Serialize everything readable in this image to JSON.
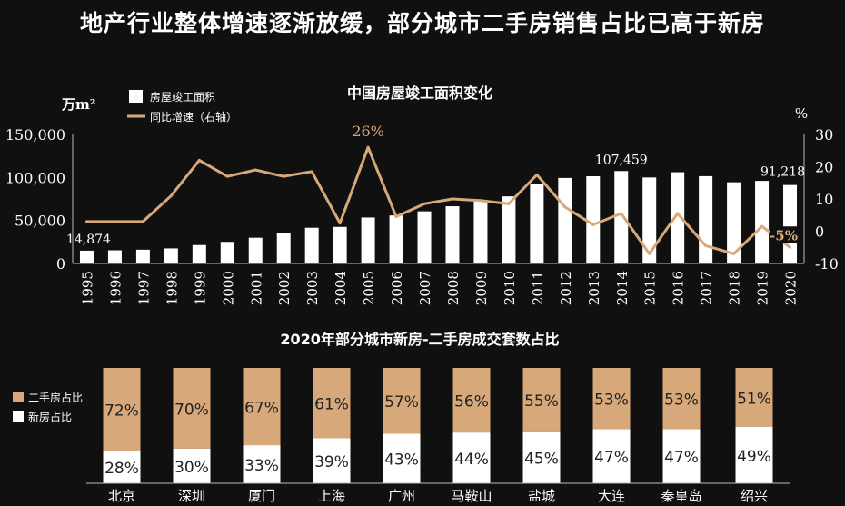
{
  "page_title": "地产行业整体增速逐渐放缓，部分城市二手房销售占比已高于新房",
  "colors": {
    "background": "#101010",
    "bar": "#ffffff",
    "line": "#d7a97a",
    "secondhand": "#d7a97a",
    "new": "#ffffff"
  },
  "chart_data": [
    {
      "type": "bar",
      "title": "中国房屋竣工面积变化",
      "ylabel": "万m²",
      "y2label": "%",
      "ylim": [
        0,
        150000
      ],
      "y2lim": [
        -10,
        30
      ],
      "yticks": [
        "150,000",
        "100,000",
        "50,000",
        "0"
      ],
      "y2ticks": [
        "30",
        "20",
        "10",
        "0",
        "-10"
      ],
      "legend": [
        "房屋竣工面积",
        "同比增速（右轴）"
      ],
      "categories": [
        "1995",
        "1996",
        "1997",
        "1998",
        "1999",
        "2000",
        "2001",
        "2002",
        "2003",
        "2004",
        "2005",
        "2006",
        "2007",
        "2008",
        "2009",
        "2010",
        "2011",
        "2012",
        "2013",
        "2014",
        "2015",
        "2016",
        "2017",
        "2018",
        "2019",
        "2020"
      ],
      "series": [
        {
          "name": "房屋竣工面积",
          "axis": "left",
          "values": [
            14874,
            15300,
            16000,
            17500,
            21400,
            25100,
            29900,
            35000,
            41500,
            42500,
            53400,
            55800,
            60600,
            66500,
            72700,
            78000,
            92600,
            99400,
            101400,
            107459,
            100000,
            106100,
            101500,
            94400,
            96000,
            91218
          ]
        },
        {
          "name": "同比增速（右轴）",
          "axis": "right",
          "values": [
            3,
            3,
            3,
            11,
            22,
            17,
            19,
            17,
            18.5,
            2.5,
            26,
            4.5,
            8.5,
            10,
            9.5,
            8.5,
            17.5,
            7.5,
            2,
            5.5,
            -7,
            5.5,
            -4.5,
            -7,
            1.5,
            -5
          ]
        }
      ],
      "annotations": [
        {
          "label": "14,874",
          "category": "1995"
        },
        {
          "label": "26%",
          "category": "2005"
        },
        {
          "label": "107,459",
          "category": "2014"
        },
        {
          "label": "91,218",
          "category": "2020"
        },
        {
          "label": "-5%",
          "category": "2020"
        }
      ]
    },
    {
      "type": "bar",
      "stacked": true,
      "percent": true,
      "title": "2020年部分城市新房-二手房成交套数占比",
      "categories": [
        "北京",
        "深圳",
        "厦门",
        "上海",
        "广州",
        "马鞍山",
        "盐城",
        "大连",
        "秦皇岛",
        "绍兴"
      ],
      "series": [
        {
          "name": "二手房占比",
          "values": [
            72,
            70,
            67,
            61,
            57,
            56,
            55,
            53,
            53,
            51
          ],
          "labels": [
            "72%",
            "70%",
            "67%",
            "61%",
            "57%",
            "56%",
            "55%",
            "53%",
            "53%",
            "51%"
          ]
        },
        {
          "name": "新房占比",
          "values": [
            28,
            30,
            33,
            39,
            43,
            44,
            45,
            47,
            47,
            49
          ],
          "labels": [
            "28%",
            "30%",
            "33%",
            "39%",
            "43%",
            "44%",
            "45%",
            "47%",
            "47%",
            "49%"
          ]
        }
      ],
      "legend": [
        "二手房占比",
        "新房占比"
      ]
    }
  ]
}
